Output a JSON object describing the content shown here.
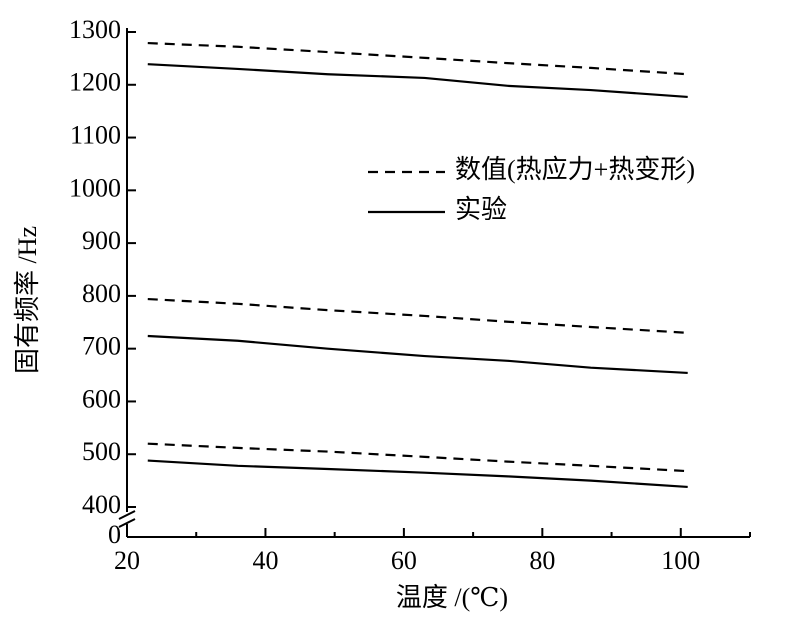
{
  "chart_data": {
    "type": "line",
    "x_label": "温度 /(℃)",
    "y_label": "固有频率 /Hz",
    "x": [
      23,
      36,
      49,
      63,
      75,
      87,
      101
    ],
    "series": [
      {
        "name": "数值(热应力+热变形)",
        "dash": true,
        "color": "#000000",
        "values": [
          1279,
          1272,
          1262,
          1251,
          1241,
          1232,
          1220
        ]
      },
      {
        "name": "实验",
        "dash": false,
        "color": "#000000",
        "values": [
          1239,
          1230,
          1220,
          1213,
          1198,
          1190,
          1177
        ]
      },
      {
        "dash": true,
        "color": "#000000",
        "values": [
          794,
          785,
          773,
          762,
          751,
          741,
          730
        ]
      },
      {
        "dash": false,
        "color": "#000000",
        "values": [
          724,
          715,
          700,
          686,
          677,
          664,
          654
        ]
      },
      {
        "dash": true,
        "color": "#000000",
        "values": [
          520,
          512,
          505,
          495,
          486,
          478,
          468
        ]
      },
      {
        "dash": false,
        "color": "#000000",
        "values": [
          488,
          478,
          472,
          465,
          458,
          450,
          438
        ]
      }
    ],
    "xlim": [
      20,
      110
    ],
    "xticks": [
      20,
      40,
      60,
      80,
      100
    ],
    "xminor": [
      30,
      50,
      70,
      90,
      110
    ],
    "ylim": [
      400,
      1300
    ],
    "yticks": [
      400,
      500,
      600,
      700,
      800,
      900,
      1000,
      1100,
      1200,
      1300
    ],
    "ybreak_tick": 0,
    "grid": false,
    "legend": "upper right"
  }
}
